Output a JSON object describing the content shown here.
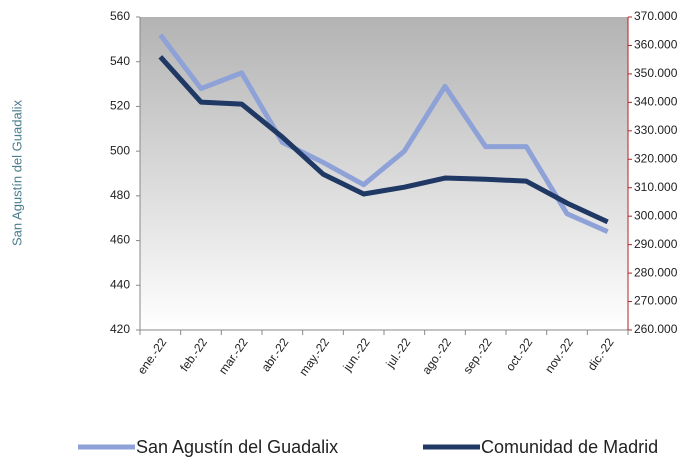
{
  "chart_data": {
    "type": "line",
    "y_label": "San Agustín del Guadalix",
    "categories": [
      "ene.-22",
      "feb.-22",
      "mar.-22",
      "abr.-22",
      "may.-22",
      "jun.-22",
      "jul.-22",
      "ago.-22",
      "sep.-22",
      "oct.-22",
      "nov.-22",
      "dic.-22"
    ],
    "series": [
      {
        "name": "San Agustín del Guadalix",
        "color": "#8ea2d8",
        "values": [
          552,
          528,
          535,
          504,
          495,
          485,
          500,
          529,
          502,
          502,
          472,
          464
        ]
      },
      {
        "name": "Comunidad de Madrid",
        "color": "#1f3864",
        "axis": "y2",
        "values": [
          356000,
          340100,
          339400,
          327800,
          314800,
          307800,
          310200,
          313400,
          313000,
          312300,
          304600,
          298000
        ]
      }
    ],
    "ylim": [
      420,
      560
    ],
    "yticks": [
      420,
      440,
      460,
      480,
      500,
      520,
      540,
      560
    ],
    "y2lim": [
      260000,
      370000
    ],
    "y2ticks": [
      {
        "value": 260000,
        "label": "260.000"
      },
      {
        "value": 270000,
        "label": "270.000"
      },
      {
        "value": 280000,
        "label": "280.000"
      },
      {
        "value": 290000,
        "label": "290.000"
      },
      {
        "value": 300000,
        "label": "300.000"
      },
      {
        "value": 310000,
        "label": "310.000"
      },
      {
        "value": 320000,
        "label": "320.000"
      },
      {
        "value": 330000,
        "label": "330.000"
      },
      {
        "value": 340000,
        "label": "340.000"
      },
      {
        "value": 350000,
        "label": "350.000"
      },
      {
        "value": 360000,
        "label": "360.000"
      },
      {
        "value": 370000,
        "label": "370.000"
      }
    ],
    "y2_axis_color": "#b22222",
    "legend": "bottom"
  }
}
